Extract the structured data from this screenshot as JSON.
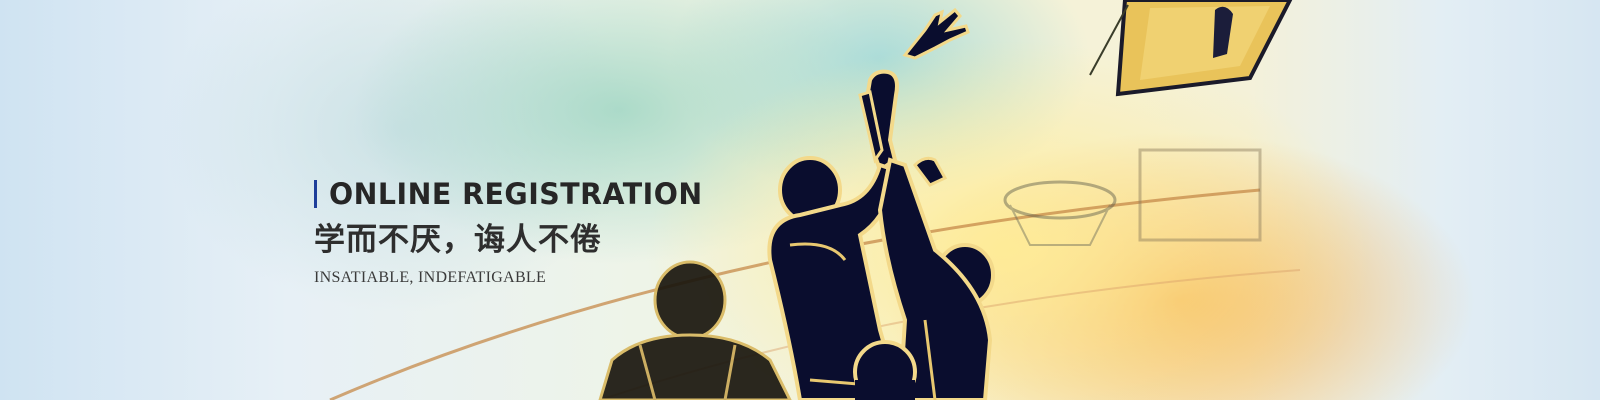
{
  "banner": {
    "title": "ONLINE   REGISTRATION",
    "subtitle_cn": "学而不厌，诲人不倦",
    "subtitle_en": "INSATIABLE, INDEFATIGABLE"
  },
  "colors": {
    "title_bar_accent": "#1d3e9a",
    "silhouette": "#0a0d2e",
    "silhouette_outline": "#f3d98a",
    "title_text": "#262626"
  },
  "icons": {
    "art": "basketball-players-silhouette-icon",
    "hoop": "basketball-hoop-icon"
  }
}
